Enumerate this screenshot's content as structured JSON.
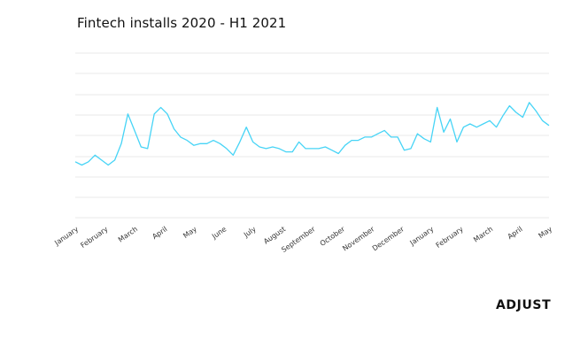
{
  "chart_data": {
    "type": "line",
    "title": "Fintech installs 2020 - H1 2021",
    "xlabel": "",
    "ylabel": "",
    "x_ticks": [
      "January",
      "February",
      "March",
      "April",
      "May",
      "June",
      "July",
      "August",
      "September",
      "October",
      "November",
      "December",
      "January",
      "February",
      "March",
      "April",
      "May"
    ],
    "grid": true,
    "legend": "none",
    "ylim": [
      0,
      100
    ],
    "series": [
      {
        "color": "#47d4f6",
        "values": [
          34,
          32,
          34,
          38,
          35,
          32,
          35,
          45,
          63,
          53,
          43,
          42,
          63,
          67,
          63,
          54,
          49,
          47,
          44,
          45,
          45,
          47,
          45,
          42,
          38,
          46,
          55,
          46,
          43,
          42,
          43,
          42,
          40,
          40,
          46,
          42,
          42,
          42,
          43,
          41,
          39,
          44,
          47,
          47,
          49,
          49,
          51,
          53,
          49,
          49,
          41,
          42,
          51,
          48,
          46,
          67,
          52,
          60,
          46,
          55,
          57,
          55,
          57,
          59,
          55,
          62,
          68,
          64,
          61,
          70,
          65,
          59,
          56
        ]
      }
    ]
  },
  "brand": {
    "logo_text": "ADJUST"
  },
  "colors": {
    "line": "#47d4f6",
    "grid": "#e9e9e9"
  }
}
